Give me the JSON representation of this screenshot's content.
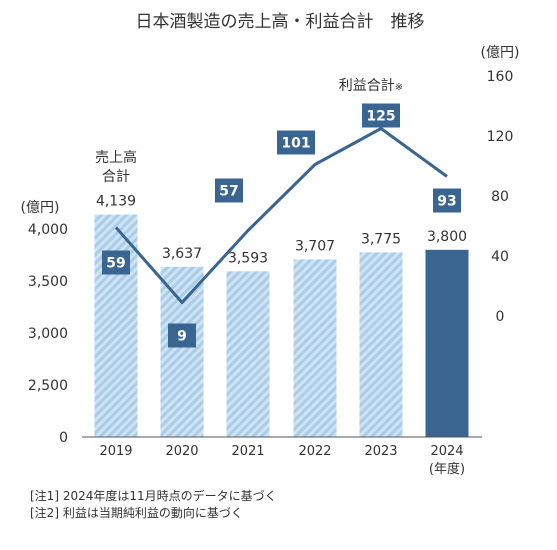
{
  "chart_data": {
    "type": "bar+line",
    "title": "日本酒製造の売上高・利益合計　推移",
    "categories": [
      "2019",
      "2020",
      "2021",
      "2022",
      "2023",
      "2024"
    ],
    "x_unit": "(年度)",
    "bars": {
      "name_lines": [
        "売上高",
        "合計"
      ],
      "values": [
        4139,
        3637,
        3593,
        3707,
        3775,
        3800
      ],
      "labels": [
        "4,139",
        "3,637",
        "3,593",
        "3,707",
        "3,775",
        "3,800"
      ],
      "axis_unit": "(億円)",
      "ylim": [
        0,
        4000
      ],
      "ticks": [
        "0",
        "2,500",
        "3,000",
        "3,500",
        "4,000"
      ],
      "hatched_color": "#a9cde8",
      "highlight_color": "#3a6591"
    },
    "line": {
      "name": "利益合計",
      "name_mark": "※",
      "values": [
        59,
        9,
        57,
        101,
        125,
        93
      ],
      "axis_unit": "(億円)",
      "ylim": [
        0,
        160
      ],
      "ticks": [
        "0",
        "40",
        "80",
        "120",
        "160"
      ],
      "color": "#3a6591"
    },
    "notes": [
      "[注1]  2024年度は11月時点のデータに基づく",
      "[注2]  利益は当期純利益の動向に基づく"
    ]
  }
}
